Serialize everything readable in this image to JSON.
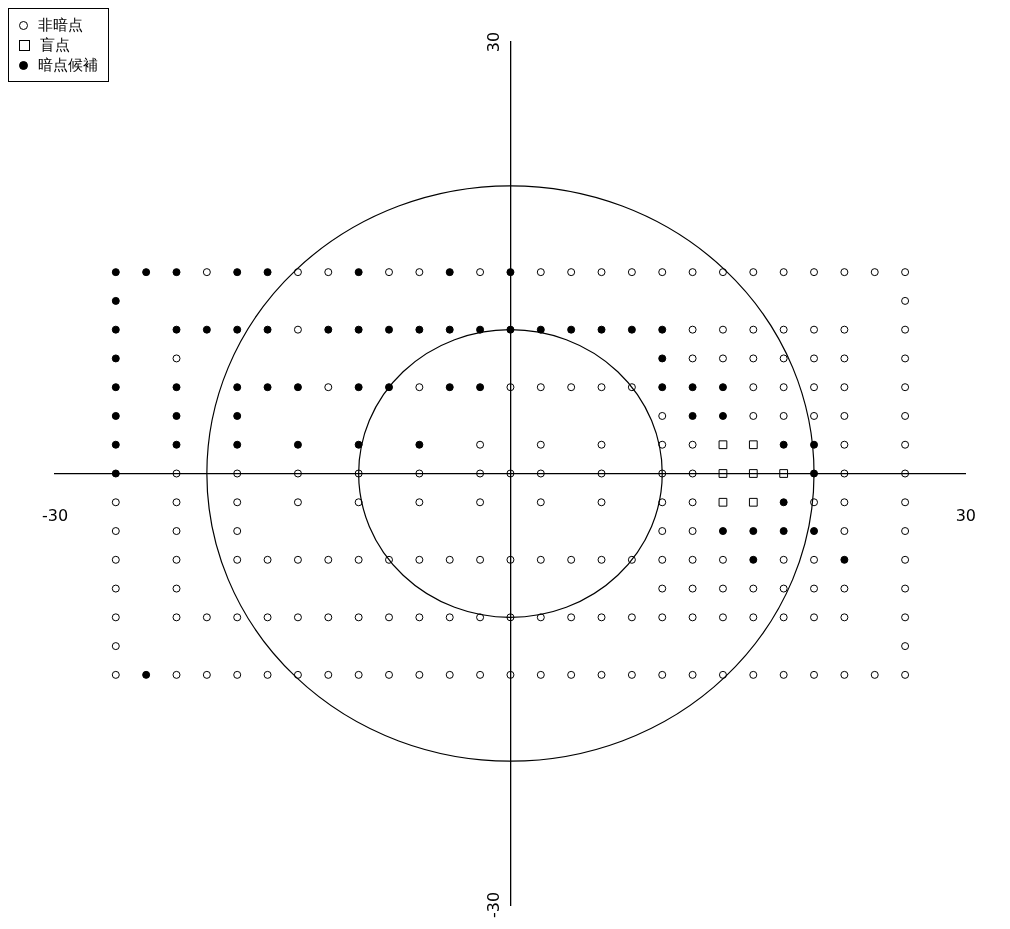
{
  "chart_data": {
    "type": "scatter",
    "legend": "top left",
    "grid": false,
    "xlim": [
      -30,
      30
    ],
    "ylim": [
      -30,
      30
    ],
    "xticks": [
      -30,
      30
    ],
    "yticks": [
      -30,
      30
    ],
    "series": [
      {
        "name": "非暗点",
        "color": "#000000",
        "marker": "circle",
        "x": [
          -20,
          -14,
          -12,
          -8,
          -6,
          -2,
          2,
          4,
          6,
          8,
          10,
          12,
          14,
          16,
          18,
          20,
          22,
          24,
          26,
          26,
          -14,
          12,
          14,
          16,
          18,
          20,
          22,
          26,
          -22,
          12,
          14,
          16,
          18,
          20,
          22,
          26,
          -12,
          -6,
          0,
          2,
          4,
          6,
          8,
          16,
          18,
          20,
          22,
          26,
          10,
          16,
          18,
          20,
          22,
          26,
          -2,
          2,
          6,
          10,
          12,
          22,
          26,
          -22,
          -18,
          -14,
          -10,
          -6,
          -2,
          0,
          2,
          6,
          10,
          12,
          22,
          26,
          -26,
          -22,
          -18,
          -14,
          -10,
          -6,
          -2,
          2,
          6,
          10,
          12,
          20,
          22,
          26,
          -26,
          -22,
          -18,
          10,
          12,
          22,
          26,
          -26,
          -22,
          -18,
          -16,
          -14,
          -12,
          -10,
          -8,
          -6,
          -4,
          -2,
          0,
          2,
          4,
          6,
          8,
          10,
          12,
          14,
          18,
          20,
          26,
          -26,
          -22,
          10,
          12,
          14,
          16,
          18,
          20,
          22,
          26,
          -26,
          -22,
          -20,
          -18,
          -16,
          -14,
          -12,
          -10,
          -8,
          -6,
          -4,
          -2,
          0,
          2,
          4,
          6,
          8,
          10,
          12,
          14,
          16,
          18,
          20,
          22,
          26,
          -26,
          26,
          -26,
          -22,
          -20,
          -18,
          -16,
          -14,
          -12,
          -10,
          -8,
          -6,
          -4,
          -2,
          0,
          2,
          4,
          6,
          8,
          10,
          12,
          14,
          16,
          18,
          20,
          22,
          24,
          26
        ],
        "values": [
          14,
          14,
          14,
          14,
          14,
          14,
          14,
          14,
          14,
          14,
          14,
          14,
          14,
          14,
          14,
          14,
          14,
          14,
          14,
          12,
          10,
          10,
          10,
          10,
          10,
          10,
          10,
          10,
          8,
          8,
          8,
          8,
          8,
          8,
          8,
          8,
          6,
          6,
          6,
          6,
          6,
          6,
          6,
          6,
          6,
          6,
          6,
          6,
          4,
          4,
          4,
          4,
          4,
          4,
          2,
          2,
          2,
          2,
          2,
          2,
          2,
          0,
          0,
          0,
          0,
          0,
          0,
          0,
          0,
          0,
          0,
          0,
          0,
          0,
          -2,
          -2,
          -2,
          -2,
          -2,
          -2,
          -2,
          -2,
          -2,
          -2,
          -2,
          -2,
          -2,
          -2,
          -4,
          -4,
          -4,
          -4,
          -4,
          -4,
          -4,
          -6,
          -6,
          -6,
          -6,
          -6,
          -6,
          -6,
          -6,
          -6,
          -6,
          -6,
          -6,
          -6,
          -6,
          -6,
          -6,
          -6,
          -6,
          -6,
          -6,
          -6,
          -6,
          -8,
          -8,
          -8,
          -8,
          -8,
          -8,
          -8,
          -8,
          -8,
          -8,
          -10,
          -10,
          -10,
          -10,
          -10,
          -10,
          -10,
          -10,
          -10,
          -10,
          -10,
          -10,
          -10,
          -10,
          -10,
          -10,
          -10,
          -10,
          -10,
          -10,
          -10,
          -10,
          -10,
          -10,
          -10,
          -12,
          -12,
          -14,
          -14,
          -14,
          -14,
          -14,
          -14,
          -14,
          -14,
          -14,
          -14,
          -14,
          -14,
          -14,
          -14,
          -14,
          -14,
          -14,
          -14,
          -14,
          -14,
          -14,
          -14,
          -14,
          -14,
          -14,
          -14
        ]
      },
      {
        "name": "盲点",
        "color": "#000000",
        "marker": "square",
        "x": [
          14,
          16,
          14,
          16,
          18,
          14,
          16
        ],
        "values": [
          2,
          2,
          0,
          0,
          0,
          -2,
          -2
        ]
      },
      {
        "name": "暗点候補",
        "color": "#000000",
        "marker": "circle",
        "x": [
          -26,
          -24,
          -22,
          -18,
          -16,
          -10,
          -4,
          0,
          -26,
          -26,
          -22,
          -20,
          -18,
          -16,
          -12,
          -10,
          -8,
          -6,
          -4,
          -2,
          0,
          2,
          4,
          6,
          8,
          10,
          -26,
          10,
          -26,
          -22,
          -18,
          -16,
          -14,
          -10,
          -8,
          -4,
          -2,
          10,
          12,
          14,
          -26,
          -22,
          -18,
          12,
          14,
          -26,
          -22,
          -18,
          -14,
          -10,
          -6,
          18,
          20,
          -26,
          20,
          18,
          14,
          16,
          18,
          20,
          16,
          22,
          -24
        ],
        "values": [
          14,
          14,
          14,
          14,
          14,
          14,
          14,
          14,
          12,
          10,
          10,
          10,
          10,
          10,
          10,
          10,
          10,
          10,
          10,
          10,
          10,
          10,
          10,
          10,
          10,
          10,
          8,
          8,
          6,
          6,
          6,
          6,
          6,
          6,
          6,
          6,
          6,
          6,
          6,
          6,
          4,
          4,
          4,
          4,
          4,
          2,
          2,
          2,
          2,
          2,
          2,
          2,
          2,
          0,
          0,
          -2,
          -4,
          -4,
          -4,
          -4,
          -6,
          -6,
          -14
        ]
      }
    ]
  }
}
